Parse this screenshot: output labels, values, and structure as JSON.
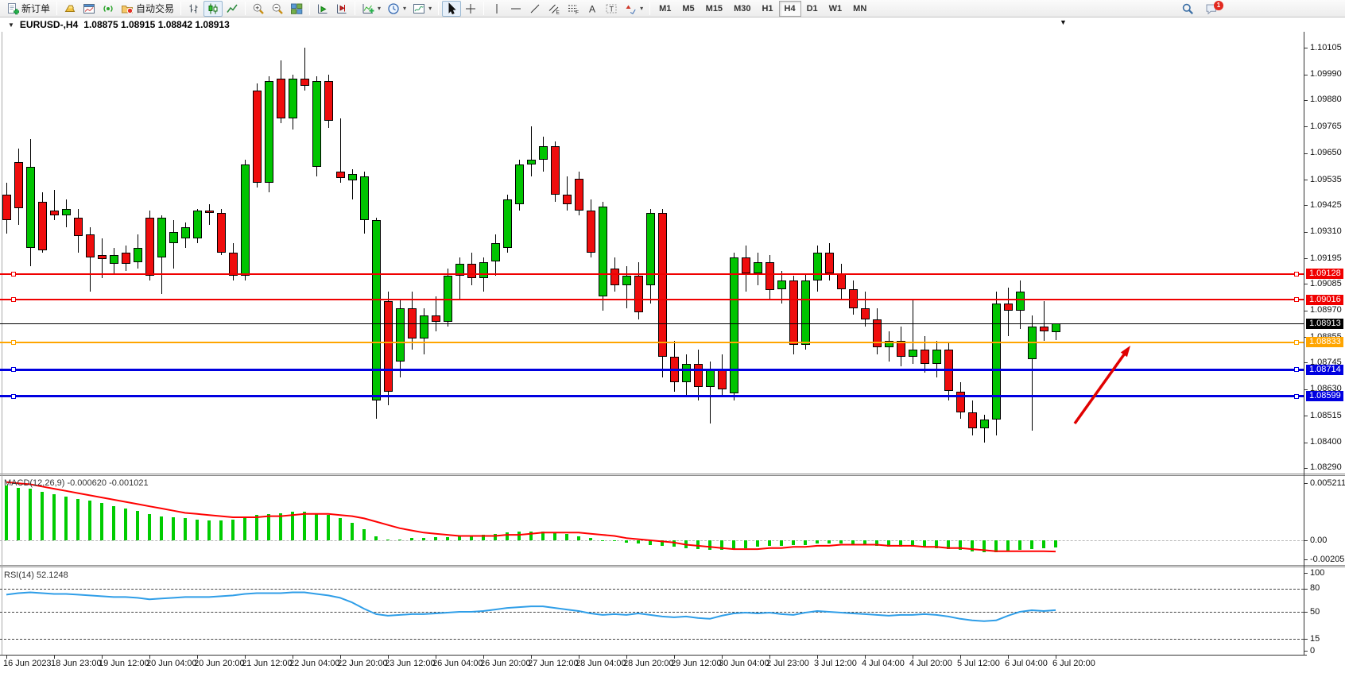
{
  "toolbar": {
    "groups": [
      [
        {
          "name": "new-order-button",
          "icon": "new-order-icon",
          "label": "新订单"
        }
      ],
      [
        {
          "name": "market-watch-button",
          "icon": "gold-icon"
        },
        {
          "name": "chart-window-button",
          "icon": "chart-window-icon"
        },
        {
          "name": "signal-button",
          "icon": "signal-icon"
        },
        {
          "name": "auto-trading-button",
          "icon": "autotrade-icon",
          "label": "自动交易"
        }
      ],
      [
        {
          "name": "bar-chart-button",
          "icon": "bar-chart-icon"
        },
        {
          "name": "candlestick-button",
          "icon": "candlestick-icon",
          "active": true
        },
        {
          "name": "line-chart-button",
          "icon": "line-chart-icon"
        }
      ],
      [
        {
          "name": "zoom-in-button",
          "icon": "zoom-in-icon"
        },
        {
          "name": "zoom-out-button",
          "icon": "zoom-out-icon"
        },
        {
          "name": "tile-windows-button",
          "icon": "tile-windows-icon"
        }
      ],
      [
        {
          "name": "auto-scroll-button",
          "icon": "auto-scroll-icon"
        },
        {
          "name": "chart-shift-button",
          "icon": "chart-shift-icon"
        }
      ],
      [
        {
          "name": "indicators-button",
          "icon": "indicators-icon",
          "caret": true
        },
        {
          "name": "periods-button",
          "icon": "periods-icon",
          "caret": true
        },
        {
          "name": "templates-button",
          "icon": "templates-icon",
          "caret": true
        }
      ],
      [
        {
          "name": "cursor-button",
          "icon": "cursor-icon",
          "active": true
        },
        {
          "name": "crosshair-button",
          "icon": "crosshair-icon"
        }
      ],
      [
        {
          "name": "vertical-line-button",
          "icon": "vline-icon"
        },
        {
          "name": "horizontal-line-button",
          "icon": "hline-icon"
        },
        {
          "name": "trendline-button",
          "icon": "trendline-icon"
        },
        {
          "name": "channel-button",
          "icon": "channel-icon"
        },
        {
          "name": "fibonacci-button",
          "icon": "fibo-icon"
        },
        {
          "name": "text-button",
          "icon": "text-icon"
        },
        {
          "name": "label-button",
          "icon": "label-icon"
        },
        {
          "name": "shapes-button",
          "icon": "shapes-icon",
          "caret": true
        }
      ]
    ],
    "timeframes": [
      {
        "label": "M1"
      },
      {
        "label": "M5"
      },
      {
        "label": "M15"
      },
      {
        "label": "M30"
      },
      {
        "label": "H1"
      },
      {
        "label": "H4",
        "active": true
      },
      {
        "label": "D1"
      },
      {
        "label": "W1"
      },
      {
        "label": "MN"
      }
    ],
    "right": [
      {
        "name": "search-button",
        "icon": "search-icon"
      },
      {
        "name": "chat-button",
        "icon": "chat-icon",
        "badge": "1"
      }
    ]
  },
  "title_bar": {
    "dropdown": "▼",
    "symbol": "EURUSD-,H4",
    "quote": "1.08875 1.08915 1.08842 1.08913",
    "shift_marker": "▼"
  },
  "chart_data": {
    "type": "candlestick",
    "symbol": "EURUSD",
    "timeframe": "H4",
    "colors": {
      "up": "#00c400",
      "down": "#ef0d0d",
      "outline": "#000000",
      "background": "#ffffff",
      "axis": "#333333"
    },
    "price_axis": {
      "ticks": [
        1.10105,
        1.0999,
        1.0988,
        1.09765,
        1.0965,
        1.09535,
        1.09425,
        1.0931,
        1.09195,
        1.09085,
        1.0897,
        1.08855,
        1.08745,
        1.0863,
        1.08515,
        1.084,
        1.0829
      ]
    },
    "time_axis": {
      "bars_per_label": 4,
      "labels": [
        "16 Jun 2023",
        "18 Jun 23:00",
        "19 Jun 12:00",
        "20 Jun 04:00",
        "20 Jun 20:00",
        "21 Jun 12:00",
        "22 Jun 04:00",
        "22 Jun 20:00",
        "23 Jun 12:00",
        "26 Jun 04:00",
        "26 Jun 20:00",
        "27 Jun 12:00",
        "28 Jun 04:00",
        "28 Jun 20:00",
        "29 Jun 12:00",
        "30 Jun 04:00",
        "2 Jul 23:00",
        "3 Jul 12:00",
        "4 Jul 04:00",
        "4 Jul 20:00",
        "5 Jul 12:00",
        "6 Jul 04:00",
        "6 Jul 20:00"
      ]
    },
    "candles": {
      "ohlc": [
        [
          1.0947,
          1.0952,
          1.093,
          1.0936
        ],
        [
          1.0961,
          1.0967,
          1.0934,
          1.0941
        ],
        [
          1.0924,
          1.0971,
          1.0916,
          1.0959
        ],
        [
          1.0944,
          1.0948,
          1.0922,
          1.0923
        ],
        [
          1.094,
          1.0949,
          1.0936,
          1.0938
        ],
        [
          1.0938,
          1.0945,
          1.0933,
          1.0941
        ],
        [
          1.0937,
          1.0941,
          1.0922,
          1.0929
        ],
        [
          1.093,
          1.0933,
          1.0905,
          1.092
        ],
        [
          1.0921,
          1.0928,
          1.0911,
          1.0919
        ],
        [
          1.0917,
          1.0924,
          1.0913,
          1.0921
        ],
        [
          1.0922,
          1.0925,
          1.0914,
          1.0917
        ],
        [
          1.0918,
          1.093,
          1.0915,
          1.0924
        ],
        [
          1.0937,
          1.094,
          1.091,
          1.0912
        ],
        [
          1.092,
          1.0938,
          1.0904,
          1.0937
        ],
        [
          1.0926,
          1.0936,
          1.0915,
          1.0931
        ],
        [
          1.0928,
          1.0935,
          1.0924,
          1.0933
        ],
        [
          1.0928,
          1.0941,
          1.0926,
          1.094
        ],
        [
          1.094,
          1.0943,
          1.0934,
          1.0939
        ],
        [
          1.0939,
          1.0941,
          1.0921,
          1.0922
        ],
        [
          1.0922,
          1.0926,
          1.091,
          1.0912
        ],
        [
          1.0912,
          1.0962,
          1.091,
          1.096
        ],
        [
          1.0992,
          1.0995,
          1.095,
          1.0952
        ],
        [
          1.0952,
          1.0998,
          1.0948,
          1.0996
        ],
        [
          1.0997,
          1.1005,
          1.0978,
          1.098
        ],
        [
          1.098,
          1.0999,
          1.0975,
          1.0997
        ],
        [
          1.0997,
          1.10105,
          1.0992,
          1.0994
        ],
        [
          1.0959,
          1.0998,
          1.0955,
          1.0996
        ],
        [
          1.0996,
          1.0999,
          1.0976,
          1.0979
        ],
        [
          1.0957,
          1.098,
          1.0952,
          1.0954
        ],
        [
          1.0953,
          1.0958,
          1.0945,
          1.0956
        ],
        [
          1.0936,
          1.0957,
          1.093,
          1.0955
        ],
        [
          1.0858,
          1.0937,
          1.085,
          1.0936
        ],
        [
          1.0901,
          1.0905,
          1.0856,
          1.0862
        ],
        [
          1.0875,
          1.0902,
          1.0868,
          1.0898
        ],
        [
          1.0898,
          1.0905,
          1.088,
          1.0885
        ],
        [
          1.0885,
          1.0898,
          1.0878,
          1.0895
        ],
        [
          1.0895,
          1.0903,
          1.0888,
          1.0892
        ],
        [
          1.0892,
          1.0915,
          1.089,
          1.0912
        ],
        [
          1.0912,
          1.092,
          1.0902,
          1.0917
        ],
        [
          1.0917,
          1.0922,
          1.0908,
          1.0911
        ],
        [
          1.0911,
          1.092,
          1.0905,
          1.0918
        ],
        [
          1.0918,
          1.093,
          1.0912,
          1.0926
        ],
        [
          1.0924,
          1.0947,
          1.0922,
          1.0945
        ],
        [
          1.0943,
          1.0962,
          1.094,
          1.096
        ],
        [
          1.096,
          1.09765,
          1.0955,
          1.0962
        ],
        [
          1.0962,
          1.0972,
          1.0957,
          1.0968
        ],
        [
          1.0968,
          1.097,
          1.0944,
          1.0947
        ],
        [
          1.0947,
          1.0955,
          1.094,
          1.0943
        ],
        [
          1.0954,
          1.0957,
          1.0938,
          1.094
        ],
        [
          1.094,
          1.0945,
          1.092,
          1.0922
        ],
        [
          1.0903,
          1.0944,
          1.0897,
          1.0942
        ],
        [
          1.0915,
          1.092,
          1.0905,
          1.0908
        ],
        [
          1.0908,
          1.0916,
          1.0898,
          1.0912
        ],
        [
          1.0912,
          1.0918,
          1.0893,
          1.0896
        ],
        [
          1.0908,
          1.0941,
          1.09,
          1.0939
        ],
        [
          1.0939,
          1.0941,
          1.0868,
          1.0877
        ],
        [
          1.0877,
          1.0884,
          1.0862,
          1.0866
        ],
        [
          1.0866,
          1.0878,
          1.086,
          1.0874
        ],
        [
          1.0874,
          1.088,
          1.0858,
          1.0864
        ],
        [
          1.0864,
          1.0875,
          1.0848,
          1.0872
        ],
        [
          1.0872,
          1.0878,
          1.086,
          1.0863
        ],
        [
          1.0861,
          1.0922,
          1.0858,
          1.092
        ],
        [
          1.092,
          1.0925,
          1.0905,
          1.0913
        ],
        [
          1.0913,
          1.0922,
          1.0908,
          1.0918
        ],
        [
          1.0918,
          1.0921,
          1.0902,
          1.0906
        ],
        [
          1.0906,
          1.0914,
          1.09,
          1.091
        ],
        [
          1.091,
          1.0912,
          1.0878,
          1.0882
        ],
        [
          1.0882,
          1.0913,
          1.088,
          1.091
        ],
        [
          1.091,
          1.0925,
          1.0905,
          1.0922
        ],
        [
          1.0922,
          1.0926,
          1.091,
          1.0913
        ],
        [
          1.0913,
          1.0917,
          1.0902,
          1.0906
        ],
        [
          1.0906,
          1.091,
          1.0895,
          1.0898
        ],
        [
          1.0898,
          1.0905,
          1.089,
          1.0893
        ],
        [
          1.0893,
          1.0898,
          1.0878,
          1.0881
        ],
        [
          1.0881,
          1.0888,
          1.0875,
          1.0884
        ],
        [
          1.0884,
          1.089,
          1.0873,
          1.0877
        ],
        [
          1.0877,
          1.0902,
          1.0874,
          1.088
        ],
        [
          1.088,
          1.0886,
          1.087,
          1.0874
        ],
        [
          1.0874,
          1.0884,
          1.0868,
          1.088
        ],
        [
          1.088,
          1.0883,
          1.0858,
          1.0862
        ],
        [
          1.0862,
          1.0866,
          1.085,
          1.0853
        ],
        [
          1.0853,
          1.0858,
          1.0843,
          1.0846
        ],
        [
          1.0846,
          1.0852,
          1.084,
          1.085
        ],
        [
          1.085,
          1.0905,
          1.0843,
          1.09
        ],
        [
          1.09,
          1.0907,
          1.0886,
          1.0897
        ],
        [
          1.0897,
          1.091,
          1.0889,
          1.0905
        ],
        [
          1.0876,
          1.0895,
          1.0845,
          1.089
        ],
        [
          1.089,
          1.0901,
          1.0884,
          1.0888
        ],
        [
          1.08875,
          1.08915,
          1.08842,
          1.08913
        ]
      ]
    },
    "hlines": [
      {
        "price": 1.09128,
        "label": "1.09128",
        "color": "#f00000",
        "width": 2
      },
      {
        "price": 1.09016,
        "label": "1.09016",
        "color": "#f00000",
        "width": 2
      },
      {
        "price": 1.08833,
        "label": "1.08833",
        "color": "#ffa500",
        "width": 2
      },
      {
        "price": 1.08714,
        "label": "1.08714",
        "color": "#0000e0",
        "width": 3
      },
      {
        "price": 1.08599,
        "label": "1.08599",
        "color": "#0000e0",
        "width": 3
      }
    ],
    "current_price": {
      "value": 1.08913,
      "label": "1.08913",
      "color": "#000000"
    },
    "macd": {
      "label": "MACD(12,26,9) -0.000620 -0.001021",
      "ticks": [
        {
          "v": 0.005211,
          "t": "0.005211"
        },
        {
          "v": 0,
          "t": "0.00"
        },
        {
          "v": -0.00205,
          "t": "-0.00205"
        }
      ],
      "colors": {
        "histogram": "#00cc00",
        "signal": "#ff0000"
      },
      "histogram": [
        0.005,
        0.0048,
        0.0047,
        0.0044,
        0.0042,
        0.004,
        0.0038,
        0.0036,
        0.0034,
        0.0031,
        0.0029,
        0.0027,
        0.0024,
        0.0022,
        0.0021,
        0.002,
        0.0019,
        0.0018,
        0.0018,
        0.0019,
        0.0021,
        0.0023,
        0.0024,
        0.0025,
        0.0026,
        0.0026,
        0.0025,
        0.0023,
        0.002,
        0.0016,
        0.001,
        0.0004,
        0.0001,
        0.0001,
        0.0002,
        0.0002,
        0.0003,
        0.0003,
        0.0004,
        0.0004,
        0.0005,
        0.0006,
        0.0007,
        0.0008,
        0.0008,
        0.0008,
        0.0007,
        0.0006,
        0.0004,
        0.0002,
        0.0,
        -0.0001,
        -0.0002,
        -0.0003,
        -0.0004,
        -0.0005,
        -0.0006,
        -0.0007,
        -0.0008,
        -0.0009,
        -0.0009,
        -0.0008,
        -0.0007,
        -0.0006,
        -0.0005,
        -0.0005,
        -0.0004,
        -0.0004,
        -0.0003,
        -0.0003,
        -0.0003,
        -0.0004,
        -0.0004,
        -0.0005,
        -0.0006,
        -0.0006,
        -0.0006,
        -0.0006,
        -0.0007,
        -0.0008,
        -0.0009,
        -0.001,
        -0.0011,
        -0.0011,
        -0.001,
        -0.0009,
        -0.0008,
        -0.0007,
        -0.00062
      ],
      "signal": [
        0.0053,
        0.0052,
        0.0051,
        0.0049,
        0.0047,
        0.0045,
        0.0043,
        0.0041,
        0.0039,
        0.0037,
        0.0035,
        0.0033,
        0.0031,
        0.0029,
        0.0027,
        0.0025,
        0.0024,
        0.0023,
        0.0022,
        0.0021,
        0.0021,
        0.0021,
        0.0022,
        0.0022,
        0.0023,
        0.0024,
        0.0024,
        0.0024,
        0.0023,
        0.0022,
        0.002,
        0.0017,
        0.0014,
        0.0011,
        0.0009,
        0.0007,
        0.0006,
        0.0005,
        0.0004,
        0.0004,
        0.0004,
        0.0004,
        0.0005,
        0.0005,
        0.0006,
        0.0007,
        0.0007,
        0.0007,
        0.0007,
        0.0006,
        0.0005,
        0.0004,
        0.0002,
        0.0001,
        0.0,
        -0.0001,
        -0.0002,
        -0.0004,
        -0.0005,
        -0.0006,
        -0.0007,
        -0.0008,
        -0.0008,
        -0.0008,
        -0.0007,
        -0.0007,
        -0.0006,
        -0.0006,
        -0.0005,
        -0.0005,
        -0.0004,
        -0.0004,
        -0.0004,
        -0.0004,
        -0.0005,
        -0.0005,
        -0.0005,
        -0.0006,
        -0.0006,
        -0.0007,
        -0.0007,
        -0.0008,
        -0.0009,
        -0.001,
        -0.001,
        -0.001,
        -0.001,
        -0.001,
        -0.00102
      ]
    },
    "rsi": {
      "label": "RSI(14) 52.1248",
      "ticks": [
        100,
        80,
        50,
        15,
        0
      ],
      "levels": [
        80,
        50,
        15
      ],
      "color": "#2f9ee8",
      "values": [
        72,
        74,
        75,
        74,
        73,
        73,
        72,
        71,
        70,
        69,
        69,
        68,
        66,
        67,
        68,
        69,
        69,
        69,
        70,
        71,
        73,
        74,
        74,
        74,
        75,
        75,
        73,
        71,
        68,
        62,
        54,
        47,
        45,
        46,
        47,
        47,
        48,
        49,
        50,
        50,
        51,
        53,
        55,
        56,
        57,
        57,
        55,
        53,
        51,
        48,
        46,
        47,
        46,
        48,
        46,
        44,
        43,
        44,
        42,
        41,
        45,
        48,
        49,
        48,
        49,
        47,
        46,
        49,
        51,
        50,
        49,
        48,
        47,
        46,
        45,
        46,
        46,
        47,
        46,
        44,
        41,
        39,
        38,
        39,
        45,
        50,
        52,
        51,
        52.1
      ]
    },
    "annotations": {
      "arrow": {
        "from": [
          1352,
          493
        ],
        "to": [
          1422,
          395
        ],
        "color": "#e00000"
      }
    }
  }
}
